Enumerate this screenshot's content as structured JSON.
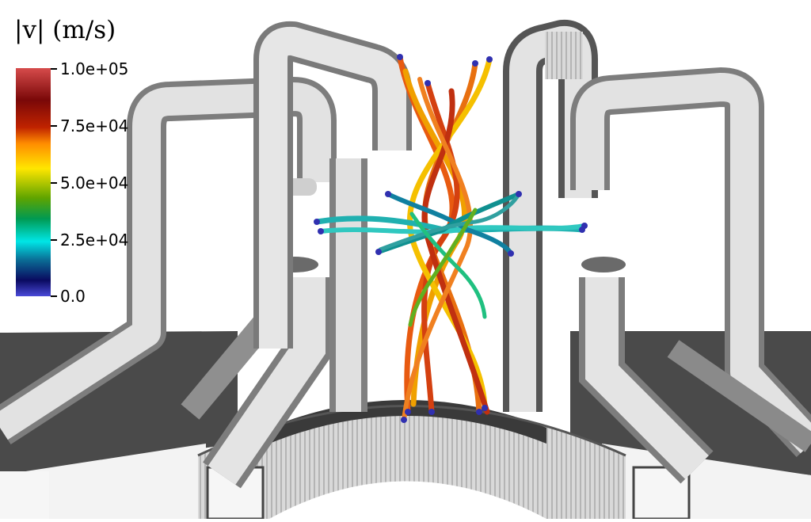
{
  "legend": {
    "title": "|v| (m/s)",
    "ticks": [
      {
        "label": "1.0e+05",
        "value": 100000
      },
      {
        "label": "7.5e+04",
        "value": 75000
      },
      {
        "label": "5.0e+04",
        "value": 50000
      },
      {
        "label": "2.5e+04",
        "value": 25000
      },
      {
        "label": "0.0",
        "value": 0
      }
    ],
    "range": [
      0,
      100000
    ],
    "colormap_stops": [
      "#4a4ad8",
      "#0a0a60",
      "#0a6e96",
      "#00e6e6",
      "#009a52",
      "#5ea400",
      "#ffe600",
      "#ff8c00",
      "#c02300",
      "#7a0808",
      "#d64b4b"
    ]
  },
  "colors": {
    "geometry": "#d2d2d2",
    "floor": "#4a4a4a",
    "background": "#ffffff"
  }
}
